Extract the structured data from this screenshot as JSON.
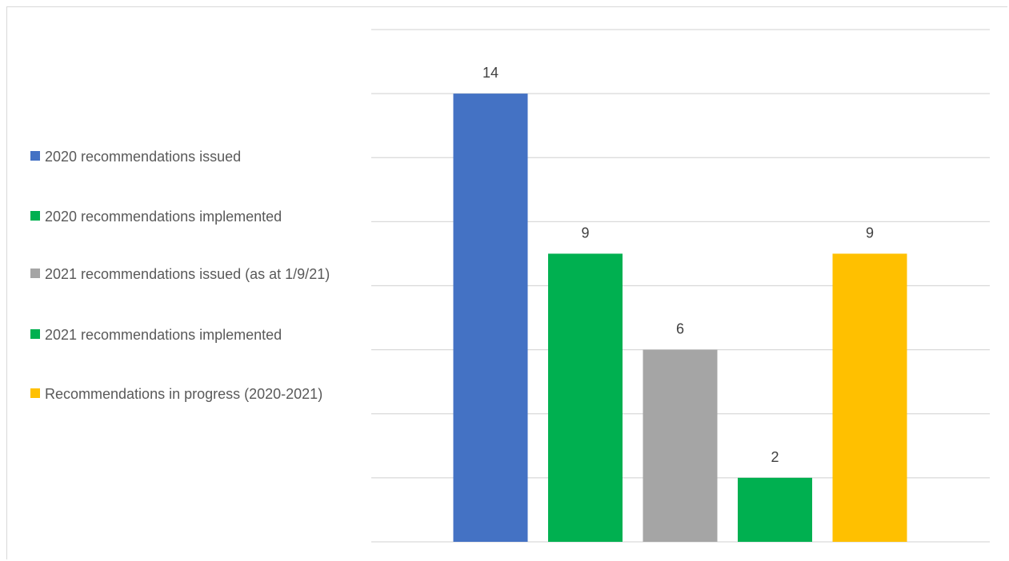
{
  "chart_data": {
    "type": "bar",
    "title": "",
    "xlabel": "",
    "ylabel": "",
    "ylim": [
      0,
      16
    ],
    "grid": true,
    "legend_position": "left",
    "categories": [
      "2020 recommendations issued",
      "2020 recommendations implemented",
      "2021 recommendations issued (as at 1/9/21)",
      "2021 recommendations implemented",
      "Recommendations in progress (2020-2021)"
    ],
    "values": [
      14,
      9,
      6,
      2,
      9
    ],
    "colors": [
      "#4472C4",
      "#00B050",
      "#A5A5A5",
      "#00B050",
      "#FFC000"
    ]
  },
  "legend": {
    "items": [
      {
        "label": "2020 recommendations issued",
        "color": "#4472C4"
      },
      {
        "label": "2020 recommendations implemented",
        "color": "#00B050"
      },
      {
        "label": "2021 recommendations issued (as at 1/9/21)",
        "color": "#A5A5A5"
      },
      {
        "label": "2021 recommendations implemented",
        "color": "#00B050"
      },
      {
        "label": "Recommendations in progress (2020-2021)",
        "color": "#FFC000"
      }
    ]
  },
  "colors": {
    "gridline": "#d9d9d9",
    "label_text": "#404040",
    "legend_text": "#595959"
  }
}
